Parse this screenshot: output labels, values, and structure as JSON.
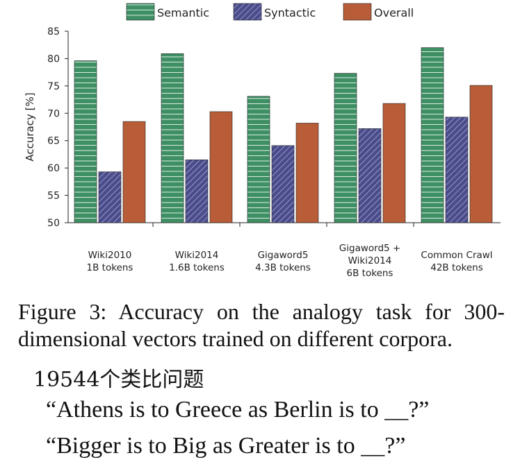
{
  "chart_data": {
    "type": "bar",
    "categories": [
      [
        "Wiki2010",
        "1B tokens"
      ],
      [
        "Wiki2014",
        "1.6B tokens"
      ],
      [
        "Gigaword5",
        "4.3B tokens"
      ],
      [
        "Gigaword5 +",
        "Wiki2014",
        "6B tokens"
      ],
      [
        "Common Crawl",
        "42B tokens"
      ]
    ],
    "series": [
      {
        "name": "Semantic",
        "values": [
          79.6,
          80.9,
          73.1,
          77.3,
          82.0
        ],
        "color": "#3e8f64",
        "pattern": "horizontal-lines"
      },
      {
        "name": "Syntactic",
        "values": [
          59.3,
          61.5,
          64.1,
          67.2,
          69.3
        ],
        "color": "#4a4c8c",
        "pattern": "diagonal-hatch"
      },
      {
        "name": "Overall",
        "values": [
          68.5,
          70.3,
          68.2,
          71.8,
          75.1
        ],
        "color": "#b85d37",
        "pattern": "solid"
      }
    ],
    "ylabel": "Accuracy [%]",
    "ylim": [
      50,
      85
    ],
    "yticks": [
      50,
      55,
      60,
      65,
      70,
      75,
      80,
      85
    ],
    "grid": false,
    "legend_position": "top"
  },
  "caption": {
    "line1": "Figure 3:  Accuracy on the analogy task for 300-",
    "line2": "dimensional vectors trained on different corpora."
  },
  "notes": {
    "count_line": "19544个类比问题",
    "example1": "“Athens is to Greece as Berlin is to __?”",
    "example2": "“Bigger is to Big as Greater is to __?”"
  }
}
